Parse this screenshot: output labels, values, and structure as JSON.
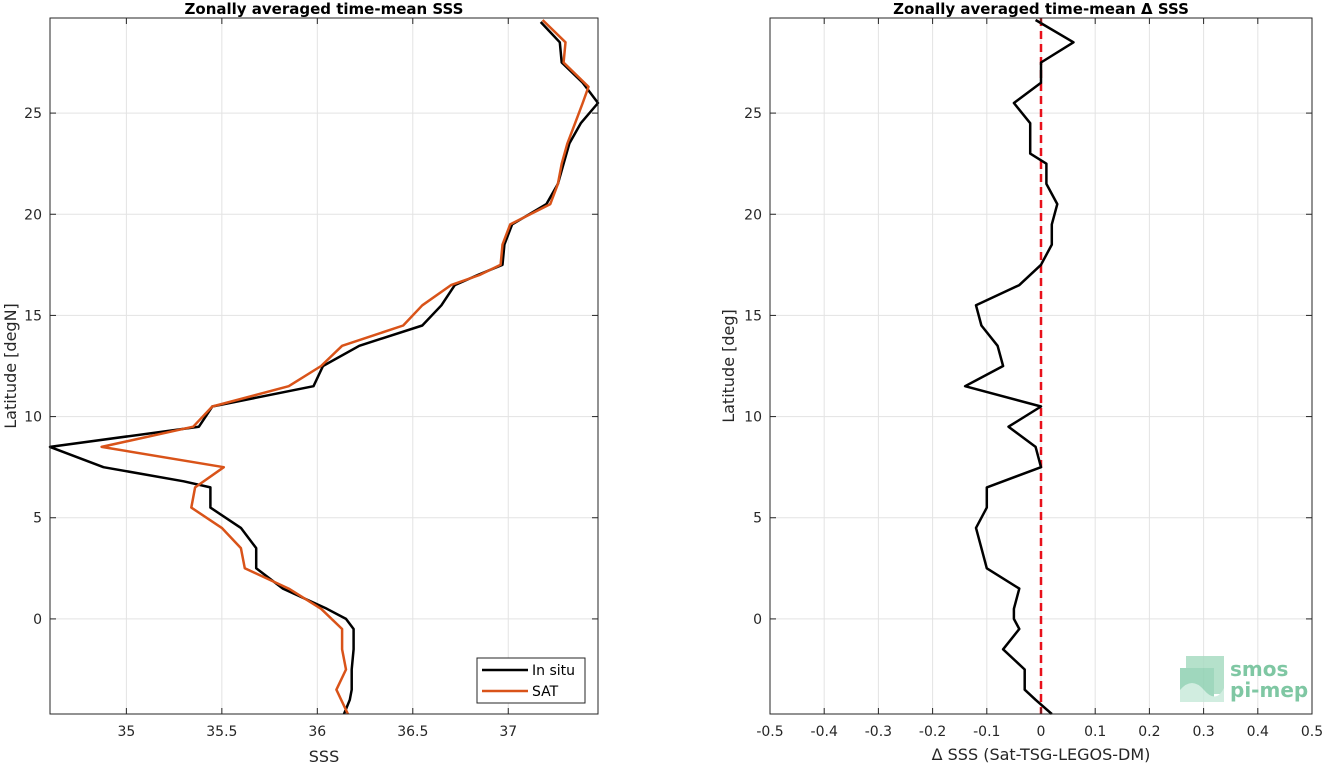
{
  "chart_data": [
    {
      "type": "line",
      "title": "Zonally averaged time-mean SSS",
      "xlabel": "SSS",
      "ylabel": "Latitude [degN]",
      "xlim": [
        34.6,
        37.47
      ],
      "ylim": [
        -4.7,
        29.7
      ],
      "xticks": [
        "35",
        "35.5",
        "36",
        "36.5",
        "37"
      ],
      "yticks": [
        "0",
        "5",
        "10",
        "15",
        "20",
        "25"
      ],
      "grid": true,
      "legend": "bottom-right",
      "series": [
        {
          "name": "In situ",
          "color": "#000000",
          "points": [
            [
              37.17,
              29.5
            ],
            [
              37.27,
              28.5
            ],
            [
              37.28,
              27.5
            ],
            [
              37.39,
              26.5
            ],
            [
              37.47,
              25.5
            ],
            [
              37.38,
              24.5
            ],
            [
              37.32,
              23.5
            ],
            [
              37.29,
              22.5
            ],
            [
              37.26,
              21.5
            ],
            [
              37.2,
              20.5
            ],
            [
              37.02,
              19.5
            ],
            [
              36.98,
              18.5
            ],
            [
              36.97,
              17.5
            ],
            [
              36.84,
              17.0
            ],
            [
              36.72,
              16.5
            ],
            [
              36.65,
              15.5
            ],
            [
              36.55,
              14.5
            ],
            [
              36.22,
              13.5
            ],
            [
              36.03,
              12.5
            ],
            [
              35.98,
              11.5
            ],
            [
              35.45,
              10.5
            ],
            [
              35.38,
              9.5
            ],
            [
              34.6,
              8.5
            ],
            [
              34.88,
              7.5
            ],
            [
              35.3,
              6.8
            ],
            [
              35.44,
              6.5
            ],
            [
              35.44,
              5.5
            ],
            [
              35.6,
              4.5
            ],
            [
              35.68,
              3.5
            ],
            [
              35.68,
              2.5
            ],
            [
              35.82,
              1.5
            ],
            [
              36.05,
              0.5
            ],
            [
              36.15,
              0.0
            ],
            [
              36.19,
              -0.5
            ],
            [
              36.19,
              -1.5
            ],
            [
              36.18,
              -2.5
            ],
            [
              36.18,
              -3.5
            ],
            [
              36.17,
              -4.0
            ],
            [
              36.14,
              -4.7
            ]
          ]
        },
        {
          "name": "SAT",
          "color": "#d95319",
          "points": [
            [
              37.18,
              29.6
            ],
            [
              37.3,
              28.5
            ],
            [
              37.29,
              27.5
            ],
            [
              37.42,
              26.3
            ],
            [
              37.39,
              25.5
            ],
            [
              37.35,
              24.5
            ],
            [
              37.31,
              23.5
            ],
            [
              37.28,
              22.5
            ],
            [
              37.26,
              21.5
            ],
            [
              37.22,
              20.5
            ],
            [
              37.01,
              19.5
            ],
            [
              36.97,
              18.5
            ],
            [
              36.96,
              17.5
            ],
            [
              36.85,
              17.0
            ],
            [
              36.7,
              16.5
            ],
            [
              36.55,
              15.5
            ],
            [
              36.45,
              14.5
            ],
            [
              36.13,
              13.5
            ],
            [
              36.02,
              12.5
            ],
            [
              35.85,
              11.5
            ],
            [
              35.45,
              10.5
            ],
            [
              35.35,
              9.5
            ],
            [
              34.87,
              8.5
            ],
            [
              35.51,
              7.5
            ],
            [
              35.36,
              6.5
            ],
            [
              35.34,
              5.5
            ],
            [
              35.5,
              4.5
            ],
            [
              35.6,
              3.5
            ],
            [
              35.62,
              2.5
            ],
            [
              35.85,
              1.5
            ],
            [
              36.02,
              0.5
            ],
            [
              36.13,
              -0.5
            ],
            [
              36.13,
              -1.5
            ],
            [
              36.15,
              -2.5
            ],
            [
              36.1,
              -3.5
            ],
            [
              36.16,
              -4.7
            ]
          ]
        }
      ]
    },
    {
      "type": "line",
      "title": "Zonally averaged time-mean Δ SSS",
      "xlabel": "Δ SSS (Sat-TSG-LEGOS-DM)",
      "ylabel": "Latitude [deg]",
      "xlim": [
        -0.5,
        0.5
      ],
      "ylim": [
        -4.7,
        29.7
      ],
      "xticks": [
        "-0.5",
        "-0.4",
        "-0.3",
        "-0.2",
        "-0.1",
        "0",
        "0.1",
        "0.2",
        "0.3",
        "0.4",
        "0.5"
      ],
      "yticks": [
        "0",
        "5",
        "10",
        "15",
        "20",
        "25"
      ],
      "grid": true,
      "reference_line": {
        "x": 0,
        "color": "#e8101a",
        "style": "dashed"
      },
      "series": [
        {
          "color": "#000000",
          "points": [
            [
              -0.01,
              29.6
            ],
            [
              0.06,
              28.5
            ],
            [
              0.0,
              27.5
            ],
            [
              0.0,
              26.5
            ],
            [
              -0.05,
              25.5
            ],
            [
              -0.02,
              24.5
            ],
            [
              -0.02,
              23.5
            ],
            [
              -0.02,
              23.0
            ],
            [
              0.01,
              22.5
            ],
            [
              0.01,
              21.5
            ],
            [
              0.03,
              20.5
            ],
            [
              0.02,
              19.5
            ],
            [
              0.02,
              18.5
            ],
            [
              0.0,
              17.5
            ],
            [
              -0.04,
              16.5
            ],
            [
              -0.12,
              15.5
            ],
            [
              -0.11,
              14.5
            ],
            [
              -0.08,
              13.5
            ],
            [
              -0.07,
              12.5
            ],
            [
              -0.14,
              11.5
            ],
            [
              0.0,
              10.5
            ],
            [
              -0.06,
              9.5
            ],
            [
              -0.01,
              8.5
            ],
            [
              0.0,
              7.5
            ],
            [
              -0.1,
              6.5
            ],
            [
              -0.1,
              5.5
            ],
            [
              -0.12,
              4.5
            ],
            [
              -0.11,
              3.5
            ],
            [
              -0.1,
              2.5
            ],
            [
              -0.04,
              1.5
            ],
            [
              -0.05,
              0.5
            ],
            [
              -0.05,
              0.0
            ],
            [
              -0.04,
              -0.5
            ],
            [
              -0.07,
              -1.5
            ],
            [
              -0.03,
              -2.5
            ],
            [
              -0.03,
              -3.5
            ],
            [
              -0.01,
              -4.0
            ],
            [
              0.02,
              -4.7
            ]
          ]
        }
      ]
    }
  ],
  "legend": {
    "items": [
      {
        "label": "In situ",
        "color": "#000000"
      },
      {
        "label": "SAT",
        "color": "#d95319"
      }
    ]
  },
  "logo": {
    "line1": "smos",
    "line2": "pi-mep",
    "color": "#7fc7a3"
  }
}
